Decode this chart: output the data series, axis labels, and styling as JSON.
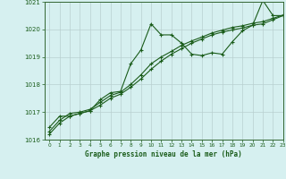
{
  "title": "Graphe pression niveau de la mer (hPa)",
  "bg_color": "#d6f0f0",
  "grid_color": "#c0d8d8",
  "line_color": "#1a5c1a",
  "xlim": [
    -0.5,
    23
  ],
  "ylim": [
    1016,
    1021
  ],
  "yticks": [
    1016,
    1017,
    1018,
    1019,
    1020,
    1021
  ],
  "xticks": [
    0,
    1,
    2,
    3,
    4,
    5,
    6,
    7,
    8,
    9,
    10,
    11,
    12,
    13,
    14,
    15,
    16,
    17,
    18,
    19,
    20,
    21,
    22,
    23
  ],
  "series1_x": [
    0,
    1,
    2,
    3,
    4,
    5,
    6,
    7,
    8,
    9,
    10,
    11,
    12,
    13,
    14,
    15,
    16,
    17,
    18,
    19,
    20,
    21,
    22,
    23
  ],
  "series1_y": [
    1016.45,
    1016.85,
    1016.85,
    1016.95,
    1017.05,
    1017.45,
    1017.7,
    1017.75,
    1018.75,
    1019.25,
    1020.2,
    1019.8,
    1019.8,
    1019.5,
    1019.1,
    1019.05,
    1019.15,
    1019.1,
    1019.55,
    1019.95,
    1020.15,
    1021.05,
    1020.5,
    1020.5
  ],
  "series2_x": [
    0,
    1,
    2,
    3,
    4,
    5,
    6,
    7,
    8,
    9,
    10,
    11,
    12,
    13,
    14,
    15,
    16,
    17,
    18,
    19,
    20,
    21,
    22,
    23
  ],
  "series2_y": [
    1016.2,
    1016.6,
    1016.85,
    1016.95,
    1017.05,
    1017.25,
    1017.5,
    1017.65,
    1017.9,
    1018.2,
    1018.55,
    1018.85,
    1019.1,
    1019.3,
    1019.5,
    1019.65,
    1019.8,
    1019.9,
    1019.98,
    1020.05,
    1020.15,
    1020.2,
    1020.35,
    1020.5
  ],
  "series3_x": [
    0,
    1,
    2,
    3,
    4,
    5,
    6,
    7,
    8,
    9,
    10,
    11,
    12,
    13,
    14,
    15,
    16,
    17,
    18,
    19,
    20,
    21,
    22,
    23
  ],
  "series3_y": [
    1016.3,
    1016.7,
    1016.95,
    1017.0,
    1017.1,
    1017.35,
    1017.6,
    1017.72,
    1018.0,
    1018.35,
    1018.75,
    1019.0,
    1019.2,
    1019.42,
    1019.58,
    1019.72,
    1019.87,
    1019.97,
    1020.07,
    1020.13,
    1020.22,
    1020.28,
    1020.4,
    1020.52
  ]
}
